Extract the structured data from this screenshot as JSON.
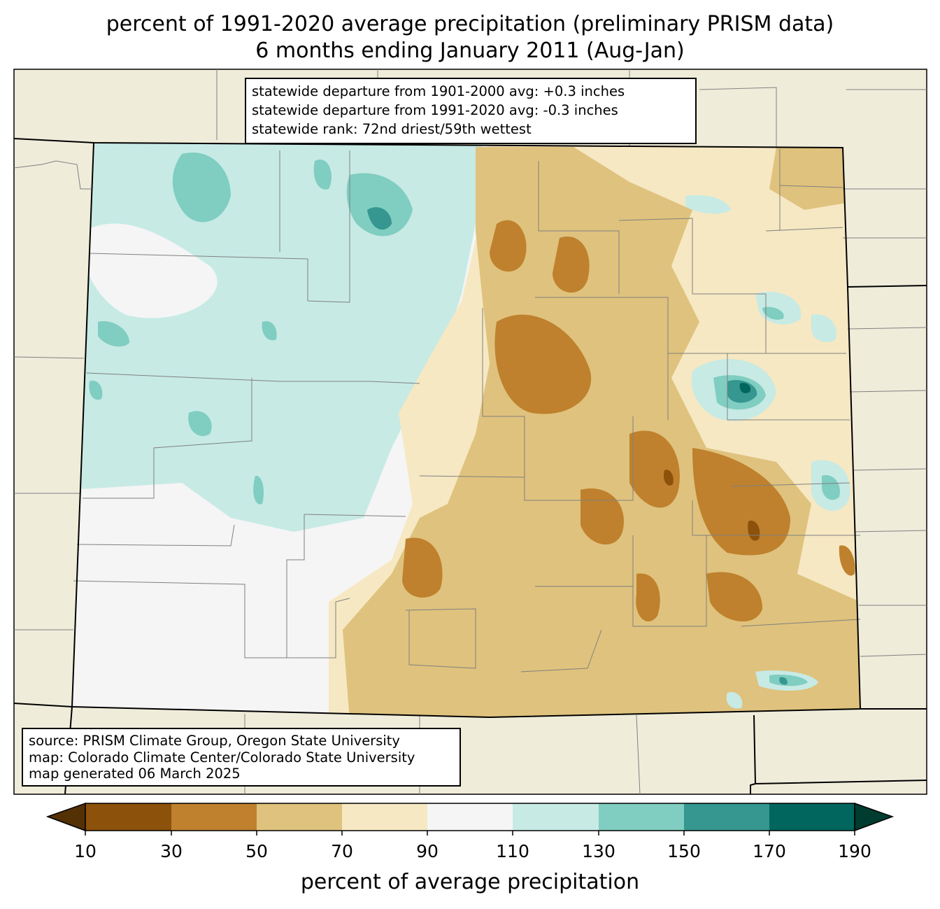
{
  "title": {
    "line1": "percent of 1991-2020 average precipitation (preliminary PRISM data)",
    "line2": "6 months ending January 2011 (Aug-Jan)"
  },
  "stats_box": {
    "line1": "statewide departure from 1901-2000 avg: +0.3 inches",
    "line2": "statewide departure from 1991-2020 avg: -0.3 inches",
    "line3": "statewide rank: 72nd driest/59th wettest"
  },
  "source_box": {
    "line1": "source: PRISM Climate Group, Oregon State University",
    "line2": "map: Colorado Climate Center/Colorado State University",
    "line3": "map generated 06 March 2025"
  },
  "colorbar": {
    "label": "percent of average precipitation",
    "ticks": [
      "10",
      "30",
      "50",
      "70",
      "90",
      "110",
      "130",
      "150",
      "170",
      "190"
    ],
    "colors": [
      "#543005",
      "#8c510a",
      "#bf812d",
      "#dfc27d",
      "#f6e8c3",
      "#f5f5f5",
      "#c7eae5",
      "#80cdc1",
      "#35978f",
      "#01665e",
      "#003c30"
    ],
    "extend": "both"
  },
  "map_colors": {
    "background_land": "#efecda",
    "county_lines": "#808080",
    "state_lines": "#000000"
  }
}
